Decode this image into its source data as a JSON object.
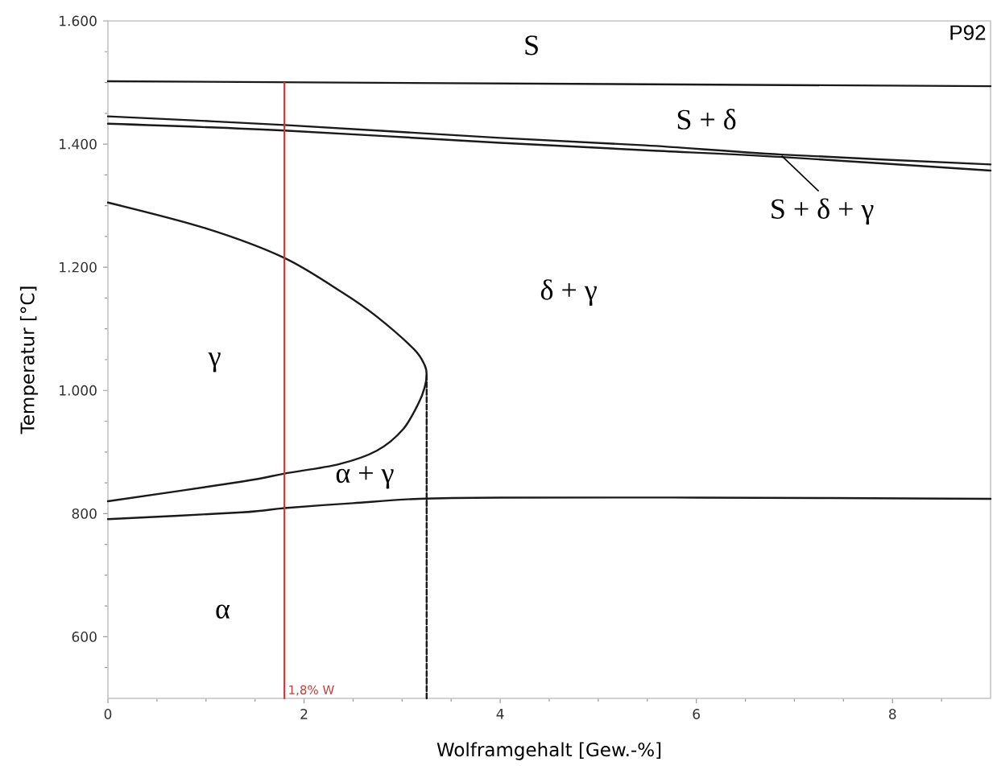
{
  "chart_data": {
    "type": "line",
    "title": "P92",
    "xlabel": "Wolframgehalt [Gew.-%]",
    "ylabel": "Temperatur [°C]",
    "xlim": [
      0,
      9
    ],
    "xticks": [
      0,
      {
        "value": 0.5,
        "label": null
      },
      {
        "value": 1,
        "label": null
      },
      {
        "value": 1.5,
        "label": null
      },
      2,
      {
        "value": 2.5,
        "label": null
      },
      {
        "value": 3,
        "label": null
      },
      {
        "value": 3.5,
        "label": null
      },
      4,
      {
        "value": 4.5,
        "label": null
      },
      {
        "value": 5,
        "label": null
      },
      {
        "value": 5.5,
        "label": null
      },
      6,
      {
        "value": 6.5,
        "label": null
      },
      {
        "value": 7,
        "label": null
      },
      {
        "value": 7.5,
        "label": null
      },
      8,
      {
        "value": 8.5,
        "label": null
      }
    ],
    "ylim": [
      500,
      1600
    ],
    "yticks": [
      {
        "value": 550,
        "label": null
      },
      600,
      {
        "value": 650,
        "label": null
      },
      {
        "value": 700,
        "label": null
      },
      {
        "value": 750,
        "label": null
      },
      800,
      {
        "value": 850,
        "label": null
      },
      {
        "value": 900,
        "label": null
      },
      {
        "value": 950,
        "label": null
      },
      {
        "value": 1000,
        "label": "1.000"
      },
      {
        "value": 1050,
        "label": null
      },
      {
        "value": 1100,
        "label": null
      },
      {
        "value": 1150,
        "label": null
      },
      {
        "value": 1200,
        "label": "1.200"
      },
      {
        "value": 1250,
        "label": null
      },
      {
        "value": 1300,
        "label": null
      },
      {
        "value": 1350,
        "label": null
      },
      {
        "value": 1400,
        "label": "1.400"
      },
      {
        "value": 1450,
        "label": null
      },
      {
        "value": 1500,
        "label": null
      },
      {
        "value": 1550,
        "label": null
      },
      {
        "value": 1600,
        "label": "1.600"
      }
    ],
    "marker": "none",
    "line_style": "solid",
    "series": [
      {
        "color": "#1a1a1a",
        "x": [
          0,
          9
        ],
        "values": [
          1502,
          1494
        ]
      },
      {
        "color": "#1a1a1a",
        "x": [
          0,
          1.8,
          4,
          5.48,
          6.87,
          9
        ],
        "values": [
          1445,
          1431,
          1410,
          1398,
          1383,
          1367
        ]
      },
      {
        "color": "#1a1a1a",
        "x": [
          0,
          1.8,
          4,
          5.48,
          6.87,
          9
        ],
        "values": [
          1433,
          1422,
          1402,
          1390,
          1379,
          1357
        ]
      },
      {
        "color": "#1a1a1a",
        "x": [
          0,
          1,
          1.8,
          2.4,
          2.74,
          3.12,
          3.23,
          3.25,
          3.23,
          3.17,
          3.01,
          2.74,
          2.35,
          1.8,
          1.37,
          0
        ],
        "values": [
          1305,
          1263,
          1215,
          1158,
          1120,
          1067,
          1041,
          1025,
          1005,
          980,
          937,
          902,
          880,
          865,
          852,
          820
        ]
      },
      {
        "color": "#1a1a1a",
        "x": [
          0,
          1.37,
          1.8,
          2.5,
          3.17,
          4,
          6,
          9
        ],
        "values": [
          791,
          802,
          809,
          817,
          824,
          826,
          826,
          824
        ]
      },
      {
        "color": "#1a1a1a",
        "line_style": "dashed",
        "x": [
          3.25,
          3.25
        ],
        "values": [
          500,
          1025
        ]
      },
      {
        "name": "1,8% W",
        "color": "#c33b3b",
        "x": [
          1.8,
          1.8
        ],
        "values": [
          500,
          1500
        ]
      }
    ],
    "annotations": [
      "S",
      "S + δ",
      {
        "text": "S + δ + γ",
        "x": 6.87,
        "y": 1381
      },
      "δ + γ",
      "γ",
      "α + γ",
      "α"
    ]
  }
}
